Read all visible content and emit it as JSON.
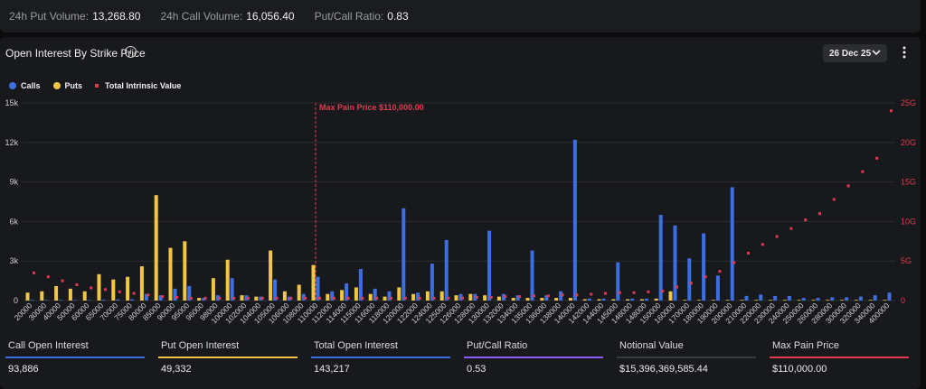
{
  "topbar": {
    "put_volume_label": "24h Put Volume:",
    "put_volume_value": "13,268.80",
    "call_volume_label": "24h Call Volume:",
    "call_volume_value": "16,056.40",
    "ratio_label": "Put/Call Ratio:",
    "ratio_value": "0.83"
  },
  "panel": {
    "title": "Open Interest By Strike Price",
    "date_selector": "26 Dec 25"
  },
  "legend": {
    "calls": "Calls",
    "puts": "Puts",
    "intrinsic": "Total Intrinsic Value"
  },
  "colors": {
    "calls": "#3d6fe0",
    "puts": "#f2c645",
    "intrinsic": "#e33a4f",
    "ratio": "#8a5cf5",
    "notional": "#3a3b3f"
  },
  "chart_data": {
    "type": "bar",
    "categories": [
      "20000",
      "30000",
      "40000",
      "50000",
      "60000",
      "65000",
      "70000",
      "75000",
      "80000",
      "85000",
      "90000",
      "95000",
      "96000",
      "98000",
      "100000",
      "102000",
      "104000",
      "105000",
      "106000",
      "108000",
      "110000",
      "112000",
      "114000",
      "115000",
      "116000",
      "118000",
      "120000",
      "122000",
      "124000",
      "125000",
      "126000",
      "128000",
      "130000",
      "132000",
      "134000",
      "135000",
      "136000",
      "138000",
      "140000",
      "142000",
      "144000",
      "145000",
      "146000",
      "148000",
      "150000",
      "160000",
      "170000",
      "180000",
      "190000",
      "200000",
      "210000",
      "220000",
      "230000",
      "240000",
      "250000",
      "260000",
      "280000",
      "300000",
      "320000",
      "340000",
      "400000"
    ],
    "series": [
      {
        "name": "Calls",
        "values": [
          50,
          40,
          50,
          40,
          40,
          60,
          80,
          100,
          500,
          400,
          900,
          1100,
          200,
          400,
          1700,
          400,
          300,
          1600,
          300,
          500,
          1800,
          700,
          1300,
          2400,
          900,
          700,
          7000,
          600,
          2800,
          4600,
          500,
          500,
          5300,
          500,
          400,
          3800,
          400,
          700,
          12200,
          150,
          150,
          2900,
          150,
          150,
          6500,
          5700,
          3200,
          5100,
          1900,
          8600,
          350,
          450,
          350,
          350,
          200,
          200,
          250,
          250,
          300,
          400,
          600
        ]
      },
      {
        "name": "Puts",
        "values": [
          600,
          700,
          1100,
          900,
          700,
          2000,
          1600,
          1800,
          2600,
          8000,
          4000,
          4500,
          200,
          1700,
          3100,
          400,
          300,
          3800,
          700,
          1200,
          2700,
          500,
          800,
          1000,
          500,
          300,
          1000,
          500,
          700,
          700,
          400,
          500,
          400,
          300,
          200,
          200,
          200,
          200,
          200,
          100,
          100,
          100,
          100,
          100,
          150,
          700,
          50,
          50,
          50,
          50,
          50,
          50,
          50,
          50,
          50,
          50,
          50,
          50,
          50,
          50,
          50
        ]
      },
      {
        "name": "Total Intrinsic Value",
        "values": [
          3.5,
          3.0,
          2.5,
          2.0,
          1.6,
          1.4,
          1.1,
          0.9,
          0.7,
          0.5,
          0.4,
          0.3,
          0.3,
          0.3,
          0.3,
          0.3,
          0.3,
          0.3,
          0.3,
          0.3,
          0.3,
          0.3,
          0.3,
          0.3,
          0.3,
          0.3,
          0.3,
          0.3,
          0.3,
          0.3,
          0.3,
          0.4,
          0.4,
          0.5,
          0.5,
          0.6,
          0.6,
          0.7,
          0.7,
          0.8,
          0.9,
          1.0,
          1.0,
          1.1,
          1.2,
          1.7,
          2.2,
          3.0,
          3.7,
          4.8,
          6.0,
          7.1,
          8.1,
          9.1,
          10.2,
          11.0,
          12.8,
          14.5,
          16.3,
          18.0,
          24.0
        ]
      }
    ],
    "y_ticks": [
      "0",
      "3k",
      "6k",
      "9k",
      "12k",
      "15k"
    ],
    "ylim": [
      0,
      15000
    ],
    "y2_ticks": [
      "0",
      "5G",
      "10G",
      "15G",
      "20G",
      "25G"
    ],
    "y2lim": [
      0,
      25
    ],
    "max_pain_strike": "110000",
    "max_pain_label": "Max Pain Price $110,000.00",
    "grid": true
  },
  "footer": [
    {
      "label": "Call Open Interest",
      "value": "93,886",
      "color": "#3d6fe0"
    },
    {
      "label": "Put Open Interest",
      "value": "49,332",
      "color": "#f2c645"
    },
    {
      "label": "Total Open Interest",
      "value": "143,217",
      "color": "#3d6fe0"
    },
    {
      "label": "Put/Call Ratio",
      "value": "0.53",
      "color": "#8a5cf5"
    },
    {
      "label": "Notional Value",
      "value": "$15,396,369,585.44",
      "color": "#3a3b3f"
    },
    {
      "label": "Max Pain Price",
      "value": "$110,000.00",
      "color": "#e33a4f"
    }
  ]
}
